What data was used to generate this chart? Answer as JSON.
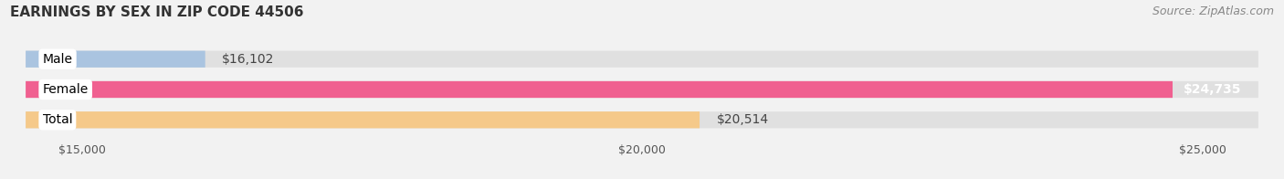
{
  "title": "EARNINGS BY SEX IN ZIP CODE 44506",
  "source": "Source: ZipAtlas.com",
  "categories": [
    "Male",
    "Female",
    "Total"
  ],
  "values": [
    16102,
    24735,
    20514
  ],
  "bar_colors": [
    "#aac4e0",
    "#f06090",
    "#f5c98a"
  ],
  "value_labels": [
    "$16,102",
    "$24,735",
    "$20,514"
  ],
  "xmin": 14500,
  "xmax": 25500,
  "xticks": [
    15000,
    20000,
    25000
  ],
  "xtick_labels": [
    "$15,000",
    "$20,000",
    "$25,000"
  ],
  "background_color": "#f2f2f2",
  "bar_bg_color": "#e0e0e0",
  "bar_height": 0.55,
  "title_fontsize": 11,
  "source_fontsize": 9,
  "label_fontsize": 10,
  "value_fontsize": 10,
  "tick_fontsize": 9
}
